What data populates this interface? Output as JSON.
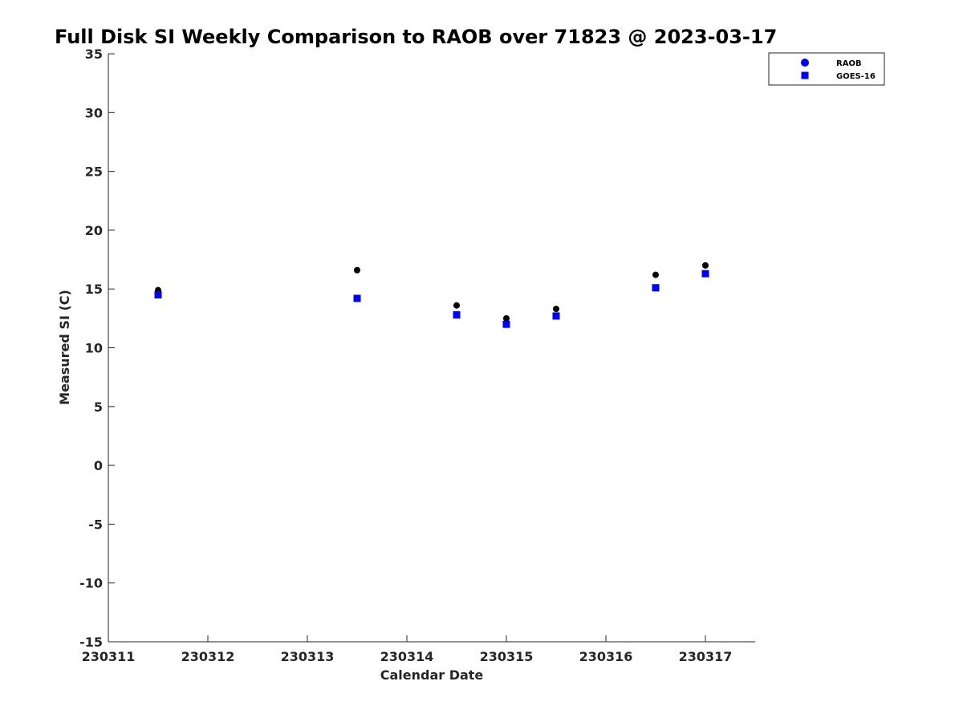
{
  "chart_data": {
    "type": "scatter",
    "title": "Full Disk SI Weekly Comparison to RAOB over 71823 @ 2023-03-17",
    "xlabel": "Calendar Date",
    "ylabel": "Measured SI (C)",
    "xlim": [
      230311,
      230317.5
    ],
    "ylim": [
      -15,
      35
    ],
    "x_ticks": [
      230311,
      230312,
      230313,
      230314,
      230315,
      230316,
      230317
    ],
    "x_tick_labels": [
      "230311",
      "230312",
      "230313",
      "230314",
      "230315",
      "230316",
      "230317"
    ],
    "y_ticks": [
      -15,
      -10,
      -5,
      0,
      5,
      10,
      15,
      20,
      25,
      30,
      35
    ],
    "y_tick_labels": [
      "-15",
      "-10",
      "-5",
      "0",
      "5",
      "10",
      "15",
      "20",
      "25",
      "30",
      "35"
    ],
    "grid": false,
    "legend_position": "top-right",
    "series": [
      {
        "name": "RAOB",
        "marker": "circle",
        "color": "#0000ff",
        "plotted_color": "#000000",
        "x": [
          230311.5,
          230313.5,
          230314.5,
          230315.0,
          230315.5,
          230316.5,
          230317.0
        ],
        "y": [
          14.9,
          16.6,
          13.6,
          12.5,
          13.3,
          16.2,
          17.0
        ]
      },
      {
        "name": "GOES-16",
        "marker": "square",
        "color": "#0000ff",
        "plotted_color": "#0000ff",
        "x": [
          230311.5,
          230313.5,
          230314.5,
          230315.0,
          230315.5,
          230316.5,
          230317.0
        ],
        "y": [
          14.5,
          14.2,
          12.8,
          12.0,
          12.7,
          15.1,
          16.3
        ]
      }
    ]
  }
}
